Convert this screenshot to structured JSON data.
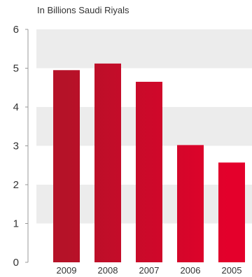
{
  "chart_data": {
    "type": "bar",
    "unit_label": "In Billions Saudi Riyals",
    "categories": [
      "2009",
      "2008",
      "2007",
      "2006",
      "2005"
    ],
    "values": [
      4.95,
      5.12,
      4.65,
      3.02,
      2.57
    ],
    "ylim": [
      0,
      6
    ],
    "yticks": [
      0,
      1,
      2,
      3,
      4,
      5,
      6
    ],
    "band_color": "#ececec",
    "bar_color_start": "#b51228",
    "bar_color_end": "#e4002b",
    "grid_bands": true,
    "legend": "none"
  }
}
